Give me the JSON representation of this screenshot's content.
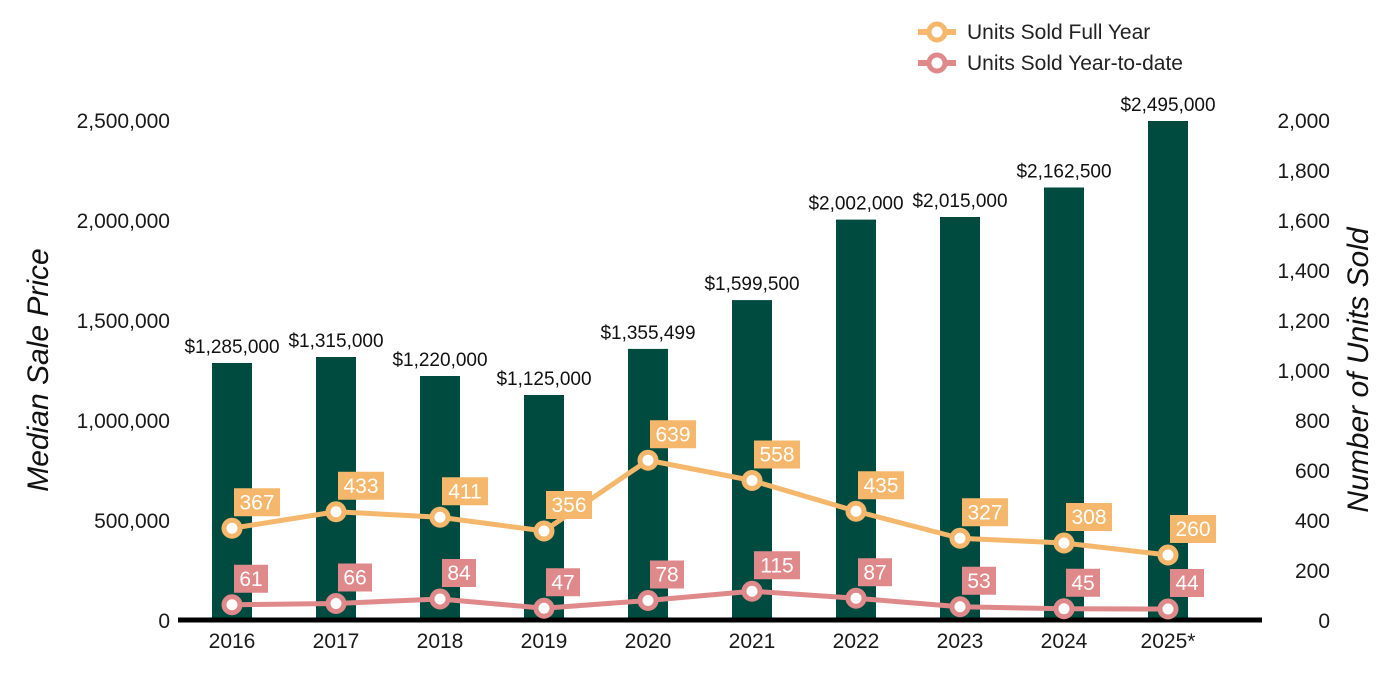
{
  "chart_data": {
    "type": "bar",
    "categories": [
      "2016",
      "2017",
      "2018",
      "2019",
      "2020",
      "2021",
      "2022",
      "2023",
      "2024",
      "2025*"
    ],
    "bar_series": {
      "name": "",
      "values": [
        1285000,
        1315000,
        1220000,
        1125000,
        1355499,
        1599500,
        2002000,
        2015000,
        2162500,
        2495000
      ],
      "labels": [
        "$1,285,000",
        "$1,315,000",
        "$1,220,000",
        "$1,125,000",
        "$1,355,499",
        "$1,599,500",
        "$2,002,000",
        "$2,015,000",
        "$2,162,500",
        "$2,495,000"
      ],
      "color": "#004b40"
    },
    "line_series": [
      {
        "name": "Units Sold Full Year",
        "values": [
          367,
          433,
          411,
          356,
          639,
          558,
          435,
          327,
          308,
          260
        ],
        "color": "#f4b76b"
      },
      {
        "name": "Units Sold Year-to-date",
        "values": [
          61,
          66,
          84,
          47,
          78,
          115,
          87,
          53,
          45,
          44
        ],
        "color": "#e0898b"
      }
    ],
    "ylabel": "Median Sale Price",
    "y2label": "Number of Units Sold",
    "ylim": [
      0,
      2500000
    ],
    "y2lim": [
      0,
      2000
    ],
    "yticks": [
      "0",
      "500,000",
      "1,000,000",
      "1,500,000",
      "2,000,000",
      "2,500,000"
    ],
    "y2ticks": [
      "0",
      "200",
      "400",
      "600",
      "800",
      "1,000",
      "1,200",
      "1,400",
      "1,600",
      "1,800",
      "2,000"
    ],
    "grid": false,
    "legend": "top-right"
  }
}
